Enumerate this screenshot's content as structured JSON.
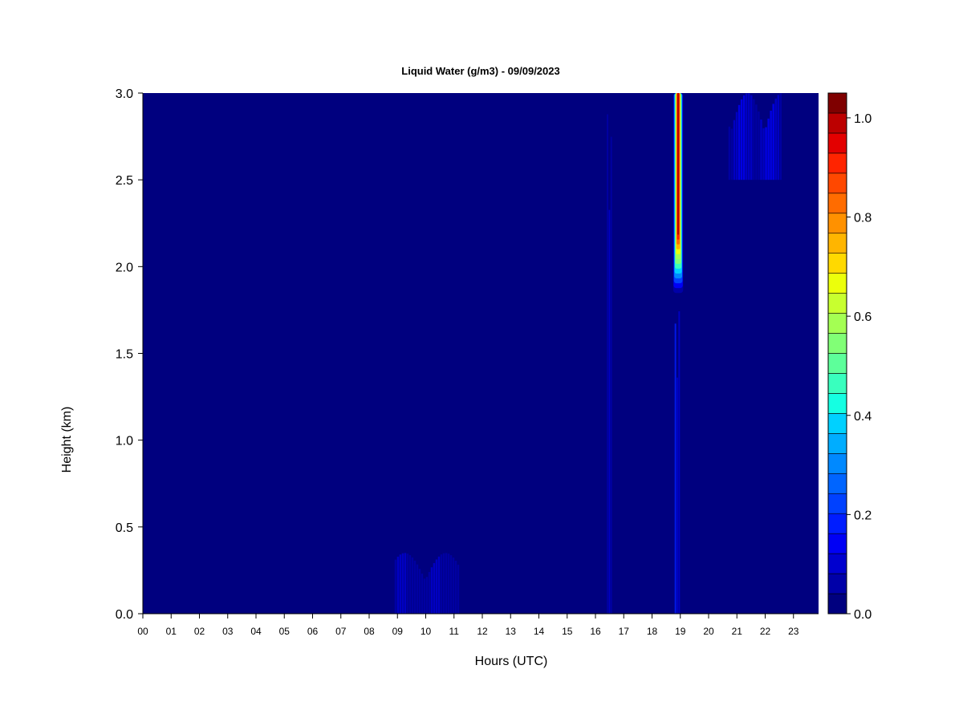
{
  "chart_data": {
    "type": "heatmap",
    "title": "Liquid Water (g/m3) - 09/09/2023",
    "xlabel": "Hours (UTC)",
    "ylabel": "Height (km)",
    "x_ticks": [
      "00",
      "01",
      "02",
      "03",
      "04",
      "05",
      "06",
      "07",
      "08",
      "09",
      "10",
      "11",
      "12",
      "13",
      "14",
      "15",
      "16",
      "17",
      "18",
      "19",
      "20",
      "21",
      "22",
      "23"
    ],
    "y_ticks": [
      "0.0",
      "0.5",
      "1.0",
      "1.5",
      "2.0",
      "2.5",
      "3.0"
    ],
    "xlim": [
      0,
      24
    ],
    "ylim": [
      0,
      3.0
    ],
    "colorbar": {
      "ticks": [
        "0.0",
        "0.2",
        "0.4",
        "0.6",
        "0.8",
        "1.0"
      ],
      "range": [
        0,
        1.05
      ],
      "levels": 21,
      "colors": [
        "#00007f",
        "#0000a8",
        "#0000cf",
        "#0000f5",
        "#001dff",
        "#0041ff",
        "#0065ff",
        "#0089ff",
        "#00adff",
        "#00d1ff",
        "#15ffe2",
        "#39ffbe",
        "#5dff9a",
        "#81ff76",
        "#a4ff53",
        "#c8ff2f",
        "#ecff0b",
        "#ffd900",
        "#ffb500",
        "#ff9100",
        "#ff6c00",
        "#ff4800",
        "#ff2400",
        "#e30000",
        "#bc0000",
        "#7f0000"
      ]
    },
    "features": [
      {
        "x_start": 18.75,
        "x_end": 19.1,
        "y_start": 1.8,
        "y_end": 3.0,
        "peak_value": 1.0
      },
      {
        "x_start": 18.8,
        "x_end": 19.0,
        "y_start": 0.0,
        "y_end": 1.8,
        "peak_value": 0.15
      },
      {
        "x_start": 16.4,
        "x_end": 16.6,
        "y_start": 0.0,
        "y_end": 3.0,
        "peak_value": 0.1
      },
      {
        "x_start": 20.7,
        "x_end": 22.6,
        "y_start": 2.5,
        "y_end": 3.0,
        "peak_value": 0.12
      },
      {
        "x_start": 8.9,
        "x_end": 11.2,
        "y_start": 0.0,
        "y_end": 0.35,
        "peak_value": 0.07
      }
    ]
  }
}
